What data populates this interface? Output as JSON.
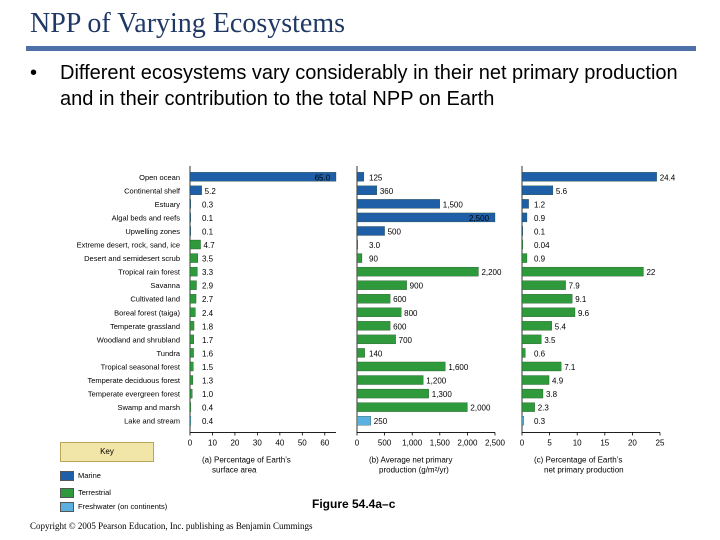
{
  "page": {
    "title": "NPP of Varying Ecosystems",
    "bullet": "Different ecosystems vary considerably in their net primary production and in their contribution to the total NPP on Earth",
    "figure_caption": "Figure 54.4a–c",
    "copyright": "Copyright © 2005 Pearson Education, Inc. publishing as Benjamin Cummings"
  },
  "legend": {
    "title": "Key",
    "items": [
      {
        "label": "Marine",
        "color": "#1f5fa8"
      },
      {
        "label": "Terrestrial",
        "color": "#2e9a3c"
      },
      {
        "label": "Freshwater (on continents)",
        "color": "#5ab0e0"
      }
    ]
  },
  "chart_data": {
    "type": "bar",
    "orientation": "horizontal",
    "categories": [
      "Open ocean",
      "Continental shelf",
      "Estuary",
      "Algal beds and reefs",
      "Upwelling zones",
      "Extreme desert, rock, sand, ice",
      "Desert and semidesert scrub",
      "Tropical rain forest",
      "Savanna",
      "Cultivated land",
      "Boreal forest (taiga)",
      "Temperate grassland",
      "Woodland and shrubland",
      "Tundra",
      "Tropical seasonal forest",
      "Temperate deciduous forest",
      "Temperate evergreen forest",
      "Swamp and marsh",
      "Lake and stream"
    ],
    "ecosystem_type": [
      "Marine",
      "Marine",
      "Marine",
      "Marine",
      "Marine",
      "Terrestrial",
      "Terrestrial",
      "Terrestrial",
      "Terrestrial",
      "Terrestrial",
      "Terrestrial",
      "Terrestrial",
      "Terrestrial",
      "Terrestrial",
      "Terrestrial",
      "Terrestrial",
      "Terrestrial",
      "Terrestrial",
      "Freshwater (on continents)"
    ],
    "panels": [
      {
        "caption": "(a) Percentage of Earth’s surface area",
        "values": [
          65.0,
          5.2,
          0.3,
          0.1,
          0.1,
          4.7,
          3.5,
          3.3,
          2.9,
          2.7,
          2.4,
          1.8,
          1.7,
          1.6,
          1.5,
          1.3,
          1.0,
          0.4,
          0.4
        ],
        "labels": [
          "65.0",
          "5.2",
          "0.3",
          "0.1",
          "0.1",
          "4.7",
          "3.5",
          "3.3",
          "2.9",
          "2.7",
          "2.4",
          "1.8",
          "1.7",
          "1.6",
          "1.5",
          "1.3",
          "1.0",
          "0.4",
          "0.4"
        ],
        "xlim": [
          0,
          65
        ],
        "ticks": [
          0,
          10,
          20,
          30,
          40,
          50,
          60
        ],
        "tick_labels": [
          "0",
          "10",
          "20",
          "30",
          "40",
          "50",
          "60"
        ]
      },
      {
        "caption": "(b) Average net primary production (g/m²/yr)",
        "values": [
          125,
          360,
          1500,
          2500,
          500,
          3.0,
          90,
          2200,
          900,
          600,
          800,
          600,
          700,
          140,
          1600,
          1200,
          1300,
          2000,
          250
        ],
        "labels": [
          "125",
          "360",
          "1,500",
          "2,500",
          "500",
          "3.0",
          "90",
          "2,200",
          "900",
          "600",
          "800",
          "600",
          "700",
          "140",
          "1,600",
          "1,200",
          "1,300",
          "2,000",
          "250"
        ],
        "xlim": [
          0,
          2500
        ],
        "ticks": [
          0,
          500,
          1000,
          1500,
          2000,
          2500
        ],
        "tick_labels": [
          "0",
          "500",
          "1,000",
          "1,500",
          "2,000",
          "2,500"
        ]
      },
      {
        "caption": "(c) Percentage of Earth’s net primary production",
        "values": [
          24.4,
          5.6,
          1.2,
          0.9,
          0.1,
          0.04,
          0.9,
          22,
          7.9,
          9.1,
          9.6,
          5.4,
          3.5,
          0.6,
          7.1,
          4.9,
          3.8,
          2.3,
          0.3
        ],
        "labels": [
          "24.4",
          "5.6",
          "1.2",
          "0.9",
          "0.1",
          "0.04",
          "0.9",
          "22",
          "7.9",
          "9.1",
          "9.6",
          "5.4",
          "3.5",
          "0.6",
          "7.1",
          "4.9",
          "3.8",
          "2.3",
          "0.3"
        ],
        "xlim": [
          0,
          25
        ],
        "ticks": [
          0,
          5,
          10,
          15,
          20,
          25
        ],
        "tick_labels": [
          "0",
          "5",
          "10",
          "15",
          "20",
          "25"
        ]
      }
    ]
  }
}
